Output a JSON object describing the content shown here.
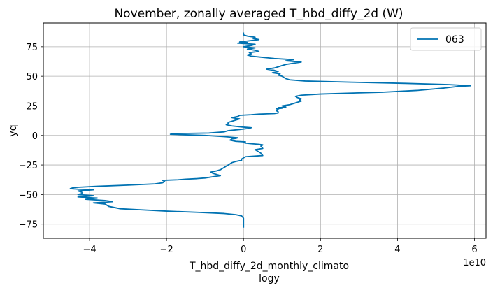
{
  "chart_data": {
    "type": "line",
    "title": "November, zonally averaged T_hbd_diffy_2d (W)",
    "xlabel": "T_hbd_diffy_2d_monthly_climato",
    "xlabel2": "logy",
    "ylabel": "yq",
    "x_offset_label": "1e10",
    "x_scale": 10000000000.0,
    "xlim": [
      -5.2,
      6.3
    ],
    "ylim": [
      -87,
      95
    ],
    "x_ticks": [
      -4,
      -2,
      0,
      2,
      4,
      6
    ],
    "x_tick_labels": [
      "−4",
      "−2",
      "0",
      "2",
      "4",
      "6"
    ],
    "y_ticks": [
      -75,
      -50,
      -25,
      0,
      25,
      50,
      75
    ],
    "y_tick_labels": [
      "−75",
      "−50",
      "−25",
      "0",
      "25",
      "50",
      "75"
    ],
    "grid": true,
    "legend": "top-right",
    "colors": {
      "series": "#0072B2"
    },
    "series": [
      {
        "name": "063",
        "points": [
          [
            0.0,
            -78
          ],
          [
            0.0,
            -75
          ],
          [
            0.0,
            -72
          ],
          [
            0.0,
            -70
          ],
          [
            -0.05,
            -68
          ],
          [
            -0.2,
            -67
          ],
          [
            -0.5,
            -66
          ],
          [
            -1.2,
            -65
          ],
          [
            -2.0,
            -64
          ],
          [
            -2.6,
            -63
          ],
          [
            -3.2,
            -62
          ],
          [
            -3.5,
            -60
          ],
          [
            -3.6,
            -58
          ],
          [
            -3.9,
            -57
          ],
          [
            -3.4,
            -56
          ],
          [
            -3.6,
            -55
          ],
          [
            -4.1,
            -54
          ],
          [
            -3.8,
            -53
          ],
          [
            -4.3,
            -52
          ],
          [
            -3.9,
            -51
          ],
          [
            -4.3,
            -50
          ],
          [
            -4.2,
            -49
          ],
          [
            -4.2,
            -48
          ],
          [
            -4.3,
            -47
          ],
          [
            -3.9,
            -46
          ],
          [
            -4.3,
            -45.5
          ],
          [
            -4.5,
            -45
          ],
          [
            -4.4,
            -44
          ],
          [
            -3.8,
            -43
          ],
          [
            -3.0,
            -42
          ],
          [
            -2.3,
            -41
          ],
          [
            -2.1,
            -40
          ],
          [
            -2.05,
            -39
          ],
          [
            -2.1,
            -38
          ],
          [
            -1.7,
            -37.5
          ],
          [
            -1.5,
            -37
          ],
          [
            -1.2,
            -36.5
          ],
          [
            -1.0,
            -36
          ],
          [
            -0.8,
            -35
          ],
          [
            -0.6,
            -34
          ],
          [
            -0.7,
            -33
          ],
          [
            -0.8,
            -32
          ],
          [
            -0.85,
            -31
          ],
          [
            -0.7,
            -30
          ],
          [
            -0.6,
            -29
          ],
          [
            -0.55,
            -28
          ],
          [
            -0.5,
            -27
          ],
          [
            -0.45,
            -26
          ],
          [
            -0.4,
            -25
          ],
          [
            -0.35,
            -24
          ],
          [
            -0.3,
            -23
          ],
          [
            -0.2,
            -22
          ],
          [
            -0.05,
            -21
          ],
          [
            -0.05,
            -20
          ],
          [
            0.0,
            -19
          ],
          [
            0.05,
            -18
          ],
          [
            0.5,
            -17
          ],
          [
            0.45,
            -15
          ],
          [
            0.35,
            -13
          ],
          [
            0.3,
            -12
          ],
          [
            0.5,
            -11
          ],
          [
            0.45,
            -9
          ],
          [
            0.5,
            -8
          ],
          [
            0.4,
            -7.5
          ],
          [
            0.2,
            -7
          ],
          [
            0.05,
            -6.5
          ],
          [
            0.0,
            -6
          ],
          [
            0.05,
            -5.5
          ],
          [
            -0.2,
            -5
          ],
          [
            -0.35,
            -4
          ],
          [
            -0.3,
            -3
          ],
          [
            -0.2,
            -2.5
          ],
          [
            -0.15,
            -2
          ],
          [
            -0.5,
            -1
          ],
          [
            -1.0,
            0
          ],
          [
            -1.5,
            0.5
          ],
          [
            -1.9,
            1
          ],
          [
            -1.8,
            1.5
          ],
          [
            -0.9,
            2
          ],
          [
            -0.5,
            3
          ],
          [
            -0.4,
            4
          ],
          [
            -0.1,
            5
          ],
          [
            0.15,
            6
          ],
          [
            0.2,
            6.5
          ],
          [
            0.0,
            7
          ],
          [
            -0.3,
            8
          ],
          [
            -0.45,
            9
          ],
          [
            -0.4,
            10
          ],
          [
            -0.4,
            11
          ],
          [
            -0.3,
            12
          ],
          [
            -0.2,
            13
          ],
          [
            -0.1,
            14
          ],
          [
            -0.3,
            15
          ],
          [
            -0.15,
            16
          ],
          [
            -0.1,
            17
          ],
          [
            0.2,
            17.5
          ],
          [
            0.4,
            18
          ],
          [
            0.8,
            18.5
          ],
          [
            0.9,
            19
          ],
          [
            0.9,
            20
          ],
          [
            0.85,
            21
          ],
          [
            0.9,
            22
          ],
          [
            0.85,
            22.5
          ],
          [
            1.0,
            23
          ],
          [
            0.9,
            23.5
          ],
          [
            1.1,
            24
          ],
          [
            1.0,
            25
          ],
          [
            1.2,
            26
          ],
          [
            1.3,
            27
          ],
          [
            1.4,
            28
          ],
          [
            1.5,
            29
          ],
          [
            1.45,
            30
          ],
          [
            1.5,
            31
          ],
          [
            1.4,
            32
          ],
          [
            1.35,
            33
          ],
          [
            1.5,
            34
          ],
          [
            2.0,
            35
          ],
          [
            3.0,
            36
          ],
          [
            3.6,
            36.5
          ],
          [
            4.5,
            38
          ],
          [
            5.2,
            40
          ],
          [
            5.6,
            41.5
          ],
          [
            5.9,
            42
          ],
          [
            5.3,
            43
          ],
          [
            4.2,
            44
          ],
          [
            2.8,
            45
          ],
          [
            1.6,
            46
          ],
          [
            1.2,
            47
          ],
          [
            1.1,
            48
          ],
          [
            1.05,
            49
          ],
          [
            1.0,
            50
          ],
          [
            0.9,
            51
          ],
          [
            0.95,
            52
          ],
          [
            0.75,
            53
          ],
          [
            0.9,
            54
          ],
          [
            0.8,
            55
          ],
          [
            0.6,
            56
          ],
          [
            0.8,
            57
          ],
          [
            0.9,
            58
          ],
          [
            1.0,
            59
          ],
          [
            1.1,
            60
          ],
          [
            1.3,
            61
          ],
          [
            1.5,
            62
          ],
          [
            1.3,
            62.5
          ],
          [
            1.1,
            63
          ],
          [
            1.3,
            64
          ],
          [
            0.8,
            65
          ],
          [
            0.5,
            66
          ],
          [
            0.2,
            67
          ],
          [
            0.1,
            68
          ],
          [
            0.2,
            69
          ],
          [
            0.15,
            70
          ],
          [
            0.4,
            71
          ],
          [
            0.3,
            72
          ],
          [
            0.1,
            73
          ],
          [
            0.3,
            74
          ],
          [
            0.0,
            75
          ],
          [
            0.2,
            76
          ],
          [
            0.3,
            77
          ],
          [
            -0.15,
            78
          ],
          [
            0.1,
            78.5
          ],
          [
            -0.1,
            79
          ],
          [
            0.15,
            80
          ],
          [
            0.4,
            81
          ],
          [
            0.25,
            82
          ],
          [
            0.3,
            83
          ],
          [
            0.1,
            84
          ],
          [
            0.0,
            85
          ],
          [
            0.0,
            86
          ],
          [
            0.0,
            87
          ]
        ]
      }
    ]
  }
}
